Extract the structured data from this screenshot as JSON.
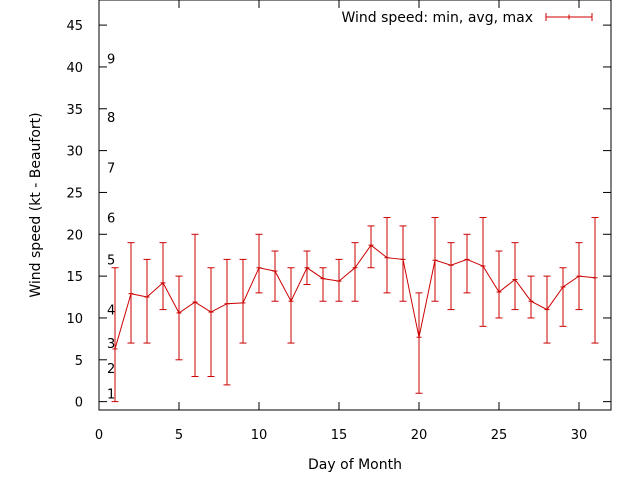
{
  "chart_data": {
    "type": "line",
    "title": "",
    "xlabel": "Day of Month",
    "ylabel": "Wind speed (kt - Beaufort)",
    "xlim": [
      0,
      32
    ],
    "ylim": [
      -1,
      48
    ],
    "xticks": [
      0,
      5,
      10,
      15,
      20,
      25,
      30
    ],
    "yticks": [
      0,
      5,
      10,
      15,
      20,
      25,
      30,
      35,
      40,
      45
    ],
    "grid": false,
    "legend_position": "top-right",
    "series_color": "#cc0000",
    "series": [
      {
        "name": "Wind speed: min, avg, max",
        "x": [
          1,
          2,
          3,
          4,
          5,
          6,
          7,
          8,
          9,
          10,
          11,
          12,
          13,
          14,
          15,
          16,
          17,
          18,
          19,
          20,
          21,
          22,
          23,
          24,
          25,
          26,
          27,
          28,
          29,
          30,
          31
        ],
        "avg": [
          6.3,
          12.9,
          12.5,
          14.2,
          10.6,
          11.9,
          10.7,
          11.7,
          11.8,
          16,
          15.6,
          12,
          16,
          14.7,
          14.4,
          16,
          18.7,
          17.2,
          17,
          7.7,
          16.9,
          16.3,
          17,
          16.2,
          13.1,
          14.6,
          12,
          11,
          13.7,
          15,
          14.8
        ],
        "min": [
          0,
          7,
          7,
          11,
          5,
          3,
          3,
          2,
          7,
          13,
          12,
          7,
          14,
          12,
          12,
          12,
          16,
          13,
          12,
          1,
          12,
          11,
          13,
          9,
          10,
          11,
          10,
          7,
          9,
          11,
          7
        ],
        "max": [
          16,
          19,
          17,
          19,
          15,
          20,
          16,
          17,
          17,
          20,
          18,
          16,
          18,
          16,
          17,
          19,
          21,
          22,
          21,
          13,
          22,
          19,
          20,
          22,
          18,
          19,
          15,
          15,
          16,
          19,
          22
        ]
      }
    ],
    "beaufort_scale": [
      {
        "label": "1",
        "y": 1
      },
      {
        "label": "2",
        "y": 4
      },
      {
        "label": "3",
        "y": 7
      },
      {
        "label": "4",
        "y": 11
      },
      {
        "label": "5",
        "y": 17
      },
      {
        "label": "6",
        "y": 22
      },
      {
        "label": "7",
        "y": 28
      },
      {
        "label": "8",
        "y": 34
      },
      {
        "label": "9",
        "y": 41
      }
    ]
  }
}
